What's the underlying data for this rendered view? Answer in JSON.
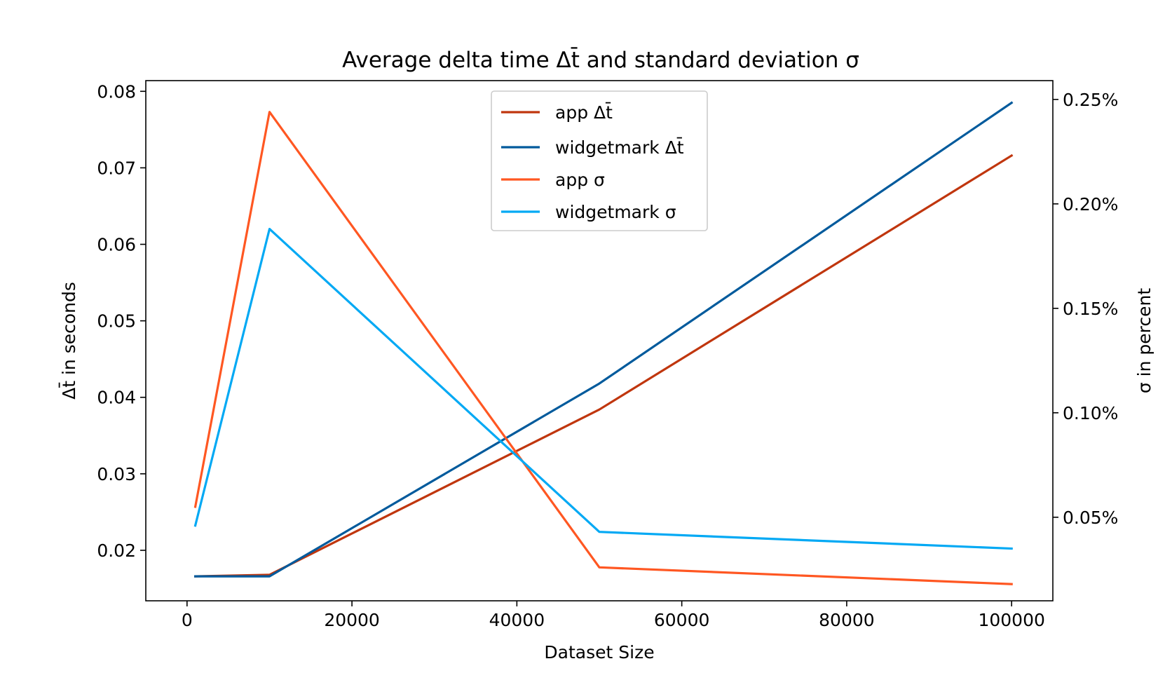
{
  "chart_data": {
    "type": "line",
    "title": "Average delta time Δt̄ and standard deviation σ",
    "xlabel": "Dataset Size",
    "ylabel_left": "Δt̄ in seconds",
    "ylabel_right": "σ in percent",
    "xlim": [
      -5000,
      105000
    ],
    "ylim_left": [
      0.0134,
      0.0814
    ],
    "ylim_right": [
      0.0001,
      0.00259
    ],
    "x_ticks": [
      0,
      20000,
      40000,
      60000,
      80000,
      100000
    ],
    "x_tick_labels": [
      "0",
      "20000",
      "40000",
      "60000",
      "80000",
      "100000"
    ],
    "y_left_ticks": [
      0.02,
      0.03,
      0.04,
      0.05,
      0.06,
      0.07,
      0.08
    ],
    "y_left_tick_labels": [
      "0.02",
      "0.03",
      "0.04",
      "0.05",
      "0.06",
      "0.07",
      "0.08"
    ],
    "y_right_ticks": [
      0.0005,
      0.001,
      0.0015,
      0.002,
      0.0025
    ],
    "y_right_tick_labels": [
      "0.05%",
      "0.10%",
      "0.15%",
      "0.20%",
      "0.25%"
    ],
    "x": [
      1000,
      10000,
      50000,
      100000
    ],
    "grid": false,
    "legend_position": "upper center",
    "series": [
      {
        "name": "app Δt̄",
        "axis": "left",
        "color": "#c0360e",
        "values": [
          0.0166,
          0.0168,
          0.0384,
          0.0716
        ]
      },
      {
        "name": "widgetmark Δt̄",
        "axis": "left",
        "color": "#005a9c",
        "values": [
          0.0166,
          0.0166,
          0.0418,
          0.0785
        ]
      },
      {
        "name": "app σ",
        "axis": "right",
        "color": "#ff5722",
        "values": [
          0.00055,
          0.00244,
          0.00026,
          0.00018
        ]
      },
      {
        "name": "widgetmark σ",
        "axis": "right",
        "color": "#03a9f4",
        "values": [
          0.00046,
          0.00188,
          0.00043,
          0.00035
        ]
      }
    ]
  }
}
